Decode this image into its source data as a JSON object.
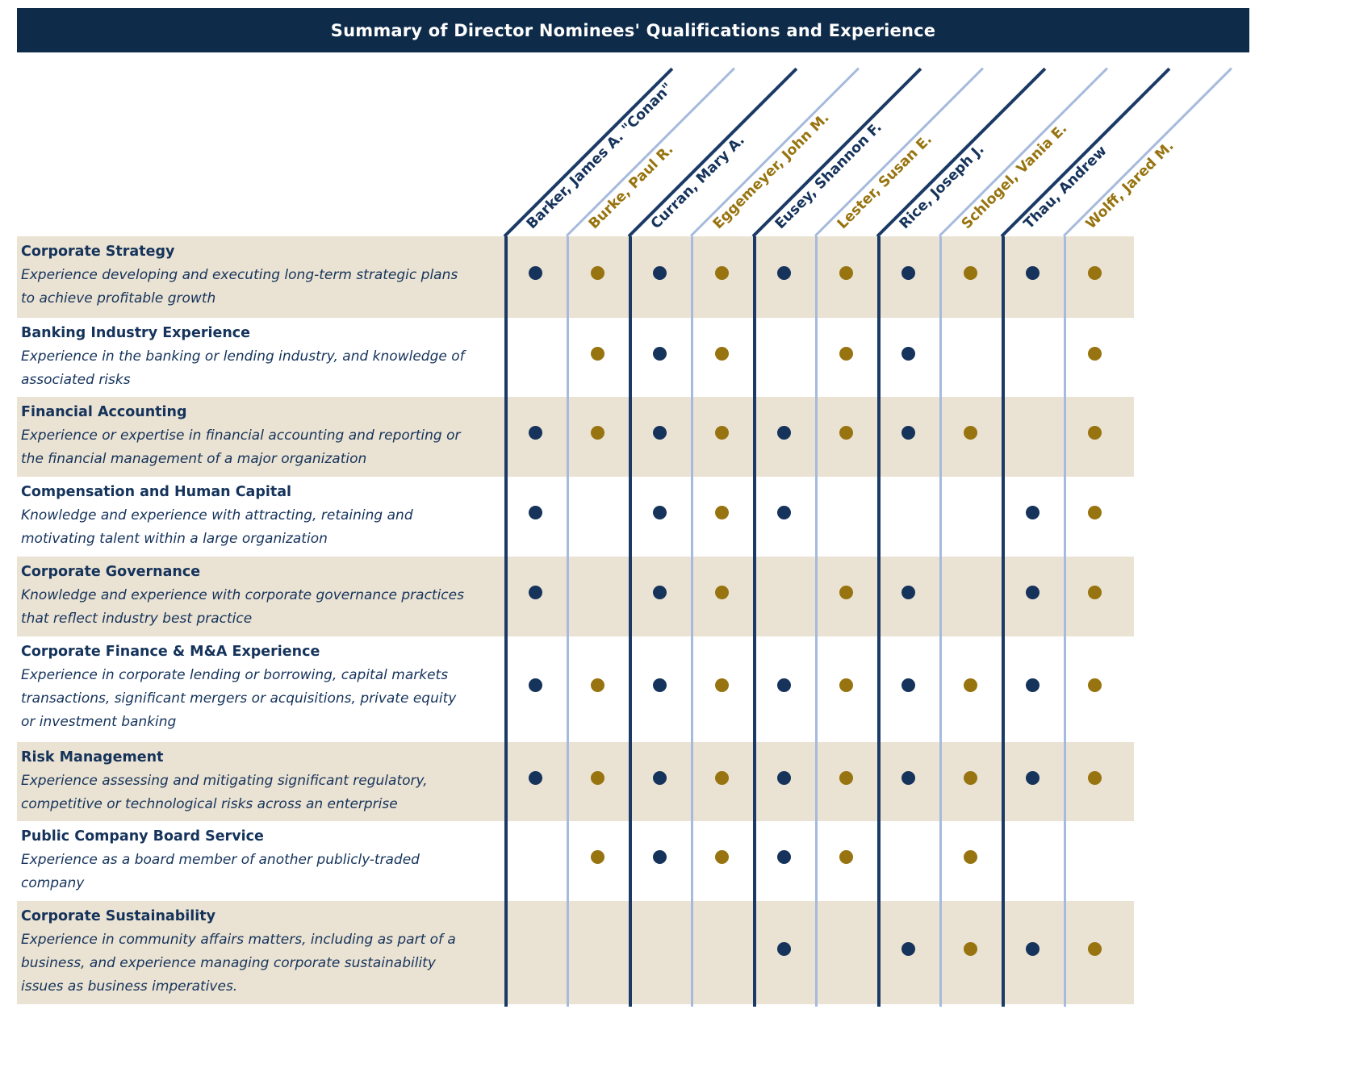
{
  "title": "Summary of Director Nominees' Qualifications and Experience",
  "colors": {
    "header_bar_bg": "#0e2b49",
    "header_bar_text": "#ffffff",
    "navy": "#15335b",
    "gold": "#97740f",
    "row_shade_bg": "#eae2d2",
    "row_plain_bg": "#ffffff",
    "divider_navy": "#1b3a66",
    "divider_light_blue": "#a6badd"
  },
  "chart_data": {
    "type": "table",
    "title": "Summary of Director Nominees' Qualifications and Experience",
    "mark_symbol": "filled-circle",
    "columns": [
      "Barker, James A. \"Conan\"",
      "Burke, Paul R.",
      "Curran, Mary A.",
      "Eggemeyer, John M.",
      "Eusey, Shannon F.",
      "Lester, Susan E.",
      "Rice, Joseph J.",
      "Schlogel, Vania E.",
      "Thau, Andrew",
      "Wolff, Jared M."
    ],
    "column_colors": [
      "navy",
      "gold",
      "navy",
      "gold",
      "navy",
      "gold",
      "navy",
      "gold",
      "navy",
      "gold"
    ],
    "rows": [
      {
        "category": "Corporate Strategy",
        "description": "Experience developing and executing long-term strategic plans to achieve profitable growth",
        "description_lines": [
          "Experience developing and executing long-term strategic plans",
          "to achieve profitable growth"
        ],
        "marks": [
          1,
          1,
          1,
          1,
          1,
          1,
          1,
          1,
          1,
          1
        ]
      },
      {
        "category": "Banking Industry Experience",
        "description": "Experience in the banking or lending industry, and knowledge of associated risks",
        "description_lines": [
          "Experience in the banking or lending industry, and knowledge of",
          "associated risks"
        ],
        "marks": [
          0,
          1,
          1,
          1,
          0,
          1,
          1,
          0,
          0,
          1
        ]
      },
      {
        "category": "Financial Accounting",
        "description": "Experience or expertise in financial accounting and reporting or the financial management of a major organization",
        "description_lines": [
          "Experience or expertise in financial accounting and reporting or",
          "the financial management of a major organization"
        ],
        "marks": [
          1,
          1,
          1,
          1,
          1,
          1,
          1,
          1,
          0,
          1
        ]
      },
      {
        "category": "Compensation and Human Capital",
        "description": "Knowledge and experience with attracting, retaining and motivating talent within a large organization",
        "description_lines": [
          "Knowledge and experience with attracting, retaining and",
          "motivating talent within a large organization"
        ],
        "marks": [
          1,
          0,
          1,
          1,
          1,
          0,
          0,
          0,
          1,
          1
        ]
      },
      {
        "category": "Corporate Governance",
        "description": "Knowledge and experience with corporate governance practices that reflect industry best practice",
        "description_lines": [
          "Knowledge and experience with corporate governance practices",
          "that reflect industry best practice"
        ],
        "marks": [
          1,
          0,
          1,
          1,
          0,
          1,
          1,
          0,
          1,
          1
        ]
      },
      {
        "category": "Corporate Finance & M&A Experience",
        "description": "Experience in corporate lending or borrowing, capital markets transactions, significant mergers or acquisitions, private equity or investment banking",
        "description_lines": [
          "Experience in corporate lending or borrowing, capital markets",
          "transactions, significant mergers or acquisitions, private equity",
          "or investment banking"
        ],
        "marks": [
          1,
          1,
          1,
          1,
          1,
          1,
          1,
          1,
          1,
          1
        ]
      },
      {
        "category": "Risk Management",
        "description": "Experience assessing and mitigating significant regulatory, competitive or technological risks across an enterprise",
        "description_lines": [
          "Experience assessing and mitigating significant regulatory,",
          "competitive or technological risks across an enterprise"
        ],
        "marks": [
          1,
          1,
          1,
          1,
          1,
          1,
          1,
          1,
          1,
          1
        ]
      },
      {
        "category": "Public Company Board Service",
        "description": "Experience as a board member of another publicly-traded company",
        "description_lines": [
          "Experience as a board member of another publicly-traded",
          "company"
        ],
        "marks": [
          0,
          1,
          1,
          1,
          1,
          1,
          0,
          1,
          0,
          0
        ]
      },
      {
        "category": "Corporate Sustainability",
        "description": "Experience in community affairs matters, including as part of a business, and experience managing corporate sustainability issues as business imperatives.",
        "description_lines": [
          "Experience in community affairs matters, including as part of a",
          "business, and experience managing corporate sustainability",
          "issues as business imperatives."
        ],
        "marks": [
          0,
          0,
          0,
          0,
          1,
          0,
          1,
          1,
          1,
          1
        ]
      }
    ]
  }
}
